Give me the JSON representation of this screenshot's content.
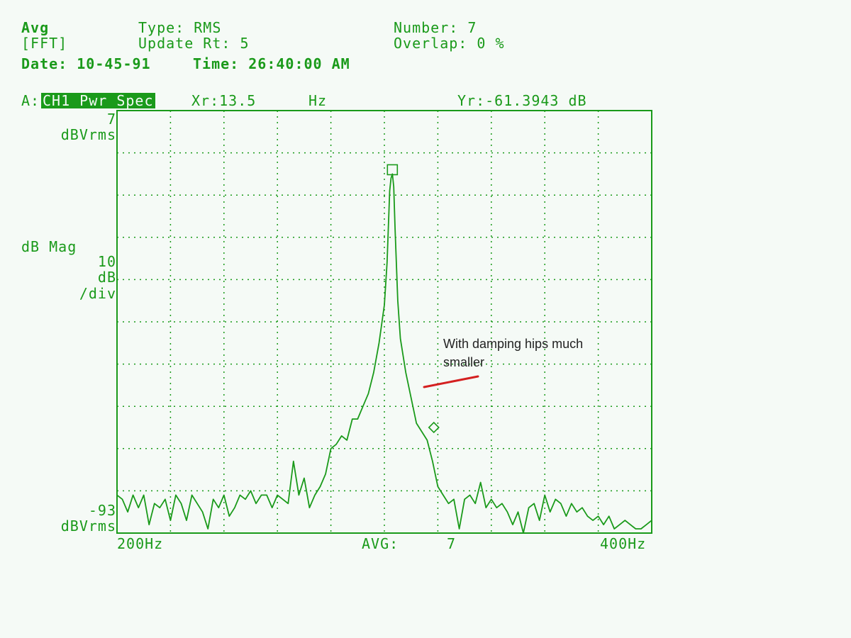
{
  "header": {
    "avg": "Avg",
    "fft": "[FFT]",
    "type": "Type: RMS",
    "update": "Update Rt: 5",
    "number": "Number: 7",
    "overlap": "Overlap: 0 %",
    "date": "Date: 10-45-91",
    "time": "Time: 26:40:00 AM"
  },
  "trace_bar": {
    "prefix": "A:",
    "trace": "CH1 Pwr Spec",
    "xr": "Xr:13.5",
    "xr_unit": "Hz",
    "yr": "Yr:-61.3943 dB"
  },
  "axis": {
    "y_top": "7",
    "y_top_unit": "dBVrms",
    "mag": "dB Mag",
    "scale1": "10",
    "scale2": "dB",
    "scale3": "/div",
    "y_bottom": "-93",
    "y_bottom_unit": "dBVrms",
    "x_left": "200Hz",
    "avg_label": "AVG:",
    "avg_value": "7",
    "x_right": "400Hz"
  },
  "annotation": "With damping hips much smaller",
  "colors": {
    "trace": "#1a9a1a",
    "background": "#f5faf6",
    "annotation_line": "#d42020"
  },
  "chart_data": {
    "type": "line",
    "xlabel": "",
    "ylabel": "dB Mag",
    "xlim": [
      200,
      400
    ],
    "ylim": [
      -93,
      7
    ],
    "grid": true,
    "markers": [
      {
        "shape": "square",
        "x": 303,
        "y": -7
      },
      {
        "shape": "diamond",
        "x": 318.5,
        "y": -68
      }
    ],
    "series": [
      {
        "x": [
          200,
          202,
          204,
          206,
          208,
          210,
          212,
          214,
          216,
          218,
          220,
          222,
          224,
          226,
          228,
          230,
          232,
          234,
          236,
          238,
          240,
          242,
          244,
          246,
          248,
          250,
          252,
          254,
          256,
          258,
          260,
          262,
          264,
          266,
          268,
          270,
          272,
          274,
          276,
          278,
          280,
          282,
          284,
          286,
          288,
          290,
          292,
          294,
          296,
          298,
          300,
          301,
          302,
          302.5,
          303,
          303.5,
          304,
          305,
          306,
          308,
          310,
          312,
          314,
          316,
          318,
          320,
          322,
          324,
          326,
          328,
          330,
          332,
          334,
          336,
          338,
          340,
          342,
          344,
          346,
          348,
          350,
          352,
          354,
          356,
          358,
          360,
          362,
          364,
          366,
          368,
          370,
          372,
          374,
          376,
          378,
          380,
          382,
          384,
          386,
          388,
          390,
          392,
          394,
          396,
          398,
          400
        ],
        "y": [
          -84,
          -85,
          -88,
          -84,
          -87,
          -84,
          -91,
          -86,
          -87,
          -85,
          -90,
          -84,
          -86,
          -90,
          -84,
          -86,
          -88,
          -92,
          -85,
          -87,
          -84,
          -89,
          -87,
          -84,
          -85,
          -83,
          -86,
          -84,
          -84,
          -87,
          -84,
          -85,
          -86,
          -76,
          -84,
          -80,
          -87,
          -84,
          -82,
          -79,
          -73,
          -72,
          -70,
          -71,
          -66,
          -66,
          -63,
          -60,
          -55,
          -48,
          -39,
          -29,
          -12,
          -9,
          -8,
          -11,
          -21,
          -38,
          -47,
          -55,
          -61,
          -67,
          -69,
          -71,
          -76,
          -82,
          -84,
          -86,
          -85,
          -92,
          -85,
          -84,
          -86,
          -81,
          -87,
          -85,
          -87,
          -86,
          -88,
          -91,
          -88,
          -93,
          -87,
          -86,
          -90,
          -84,
          -88,
          -85,
          -86,
          -89,
          -86,
          -88,
          -87,
          -89,
          -90,
          -89,
          -91,
          -89,
          -92,
          -91,
          -90,
          -91,
          -92,
          -92,
          -91,
          -90
        ]
      }
    ]
  }
}
